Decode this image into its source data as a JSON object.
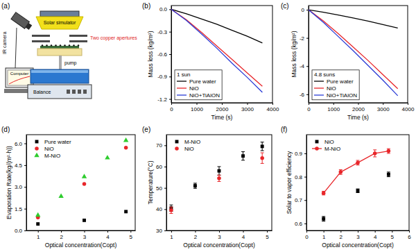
{
  "diagram": {
    "title": "(a)",
    "labels": {
      "solar_simulator": "Solar simulator",
      "ir_camera": "IR camera",
      "apertures": "Two copper apertures",
      "pump": "pump",
      "computer": "Computer",
      "balance": "Balance"
    }
  },
  "chart_data": [
    {
      "type": "line",
      "title": "(b)",
      "annotation": "1 sun",
      "x_label": "Time (s)",
      "y_label": "Mass loss (kg/m²)",
      "xlim": [
        0,
        4000
      ],
      "xticks": [
        0,
        1000,
        2000,
        3000,
        4000
      ],
      "ylim": [
        -1.25,
        0.05
      ],
      "yticks": [
        {
          "value": 0,
          "label": "0.0"
        },
        -0.3,
        -0.6,
        -0.9,
        -1.2
      ],
      "legend": "lower left",
      "grid": false,
      "series": [
        {
          "name": "Pure water",
          "color": "#000000",
          "line_style": "solid",
          "marker": "none",
          "x": [
            0,
            600,
            1200,
            1800,
            2400,
            3000,
            3600
          ],
          "values": [
            0,
            -0.06,
            -0.13,
            -0.2,
            -0.28,
            -0.36,
            -0.45
          ]
        },
        {
          "name": "NiO",
          "color": "#e8262a",
          "line_style": "solid",
          "marker": "none",
          "x": [
            0,
            600,
            1200,
            1800,
            2400,
            3000,
            3600
          ],
          "values": [
            0,
            -0.14,
            -0.31,
            -0.49,
            -0.67,
            -0.85,
            -1.03
          ]
        },
        {
          "name": "NiO+TiAlON",
          "color": "#2a3bd6",
          "line_style": "solid",
          "marker": "none",
          "x": [
            0,
            600,
            1200,
            1800,
            2400,
            3000,
            3600
          ],
          "values": [
            0,
            -0.15,
            -0.33,
            -0.52,
            -0.72,
            -0.91,
            -1.11
          ]
        }
      ]
    },
    {
      "type": "line",
      "title": "(c)",
      "annotation": "4.8 suns",
      "x_label": "Time (s)",
      "y_label": "Mass loss (kg/m²)",
      "xlim": [
        0,
        4000
      ],
      "xticks": [
        0,
        1000,
        2000,
        3000,
        4000
      ],
      "ylim": [
        -6.6,
        0.3
      ],
      "yticks": [
        0,
        -2,
        -4,
        -6
      ],
      "legend": "lower left",
      "grid": false,
      "series": [
        {
          "name": "Pure water",
          "color": "#000000",
          "line_style": "solid",
          "marker": "none",
          "x": [
            0,
            600,
            1200,
            1800,
            2400,
            3000,
            3600
          ],
          "values": [
            0,
            -0.17,
            -0.37,
            -0.58,
            -0.8,
            -1.05,
            -1.3
          ]
        },
        {
          "name": "NiO",
          "color": "#e8262a",
          "line_style": "solid",
          "marker": "none",
          "x": [
            0,
            600,
            1200,
            1800,
            2400,
            3000,
            3600
          ],
          "values": [
            0,
            -0.8,
            -1.7,
            -2.65,
            -3.6,
            -4.6,
            -5.6
          ]
        },
        {
          "name": "NiO+TiAlON",
          "color": "#2a3bd6",
          "line_style": "solid",
          "marker": "none",
          "x": [
            0,
            600,
            1200,
            1800,
            2400,
            3000,
            3600
          ],
          "values": [
            0,
            -0.9,
            -1.9,
            -2.9,
            -3.95,
            -5.0,
            -6.1
          ]
        }
      ]
    },
    {
      "type": "scatter",
      "title": "(d)",
      "x_label": "Optical concentration(Copt)",
      "y_label": "Evaporation Rate(kg/(m²·h))",
      "xlim": [
        0.5,
        5.2
      ],
      "xticks": [
        1,
        2,
        3,
        4,
        5
      ],
      "ylim": [
        0,
        6.6
      ],
      "yticks": [
        {
          "value": 0,
          "label": "0.0"
        },
        1.5,
        {
          "value": 3,
          "label": "3.0"
        },
        4.5,
        {
          "value": 6,
          "label": "6.0"
        }
      ],
      "legend": "upper left",
      "grid": false,
      "series": [
        {
          "name": "Pure water",
          "color": "#000000",
          "marker": "square",
          "line_style": "none",
          "x": [
            1,
            3,
            4.8
          ],
          "values": [
            0.45,
            0.7,
            1.3
          ]
        },
        {
          "name": "NiO",
          "color": "#e8262a",
          "marker": "circle",
          "line_style": "none",
          "x": [
            1,
            3,
            4.8
          ],
          "values": [
            0.9,
            3.2,
            5.7
          ]
        },
        {
          "name": "M-NiO",
          "color": "#2ecc2e",
          "marker": "triangle",
          "line_style": "none",
          "x": [
            1,
            2,
            3,
            4,
            4.8
          ],
          "values": [
            1.05,
            2.35,
            3.7,
            5.0,
            6.2
          ]
        }
      ]
    },
    {
      "type": "scatter",
      "title": "(e)",
      "x_label": "Optical concentration(Copt)",
      "y_label": "Temperature(°C)",
      "xlim": [
        0.8,
        5.2
      ],
      "xticks": [
        1,
        2,
        3,
        4,
        5
      ],
      "ylim": [
        30,
        75
      ],
      "yticks": [
        30,
        40,
        50,
        60,
        70
      ],
      "legend": "upper left",
      "grid": false,
      "series": [
        {
          "name": "M-NiO",
          "color": "#000000",
          "marker": "square",
          "line_style": "none",
          "x": [
            1,
            2,
            3,
            4,
            4.8
          ],
          "values": [
            40.5,
            51,
            58,
            65,
            69.5
          ],
          "errors": [
            1.5,
            1.2,
            2,
            2,
            2
          ]
        },
        {
          "name": "NiO",
          "color": "#e8262a",
          "marker": "circle",
          "line_style": "none",
          "x": [
            1,
            3,
            4.8
          ],
          "values": [
            39.5,
            54.5,
            64
          ],
          "errors": [
            1.5,
            1.5,
            2.5
          ]
        }
      ]
    },
    {
      "type": "scatter",
      "title": "(f)",
      "x_label": "Optical concentration(Copt)",
      "y_label": "Solar to vapor efficiency",
      "xlim": [
        0,
        6
      ],
      "xticks": [
        0,
        1,
        2,
        3,
        4,
        5,
        6
      ],
      "ylim": [
        0.57,
        0.98
      ],
      "yticks": [
        0.6,
        0.7,
        0.8,
        0.9
      ],
      "legend": "upper left",
      "grid": false,
      "series": [
        {
          "name": "NiO",
          "color": "#000000",
          "marker": "square",
          "line_style": "none",
          "x": [
            1,
            3,
            4.8
          ],
          "values": [
            0.62,
            0.74,
            0.81
          ],
          "errors": [
            0.01,
            0.008,
            0.01
          ]
        },
        {
          "name": "M-NiO",
          "color": "#e8262a",
          "marker": "circle",
          "line_style": "solid",
          "x": [
            1,
            2,
            3,
            4,
            4.8
          ],
          "values": [
            0.73,
            0.82,
            0.86,
            0.9,
            0.91
          ],
          "errors": [
            0.008,
            0.01,
            0.01,
            0.015,
            0.01
          ]
        }
      ]
    }
  ]
}
